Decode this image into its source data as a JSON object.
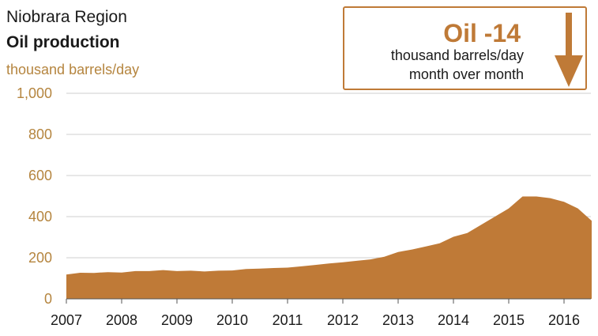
{
  "header": {
    "title": "Niobrara Region",
    "subtitle": "Oil production",
    "unit": "thousand barrels/day"
  },
  "callout": {
    "headline": "Oil -14",
    "line1": "thousand barrels/day",
    "line2": "month over month",
    "direction": "down",
    "color": "#bf7a37"
  },
  "chart_data": {
    "type": "area",
    "title": "Oil production",
    "ylabel": "thousand barrels/day",
    "ylim": [
      0,
      1000
    ],
    "y_ticks": [
      0,
      200,
      400,
      600,
      800,
      1000
    ],
    "y_tick_labels": [
      "0",
      "200",
      "400",
      "600",
      "800",
      "1,000"
    ],
    "x_ticks": [
      2007,
      2008,
      2009,
      2010,
      2011,
      2012,
      2013,
      2014,
      2015,
      2016
    ],
    "xlim": [
      2007,
      2016.5
    ],
    "grid": true,
    "fill_color": "#bf7a37",
    "series": [
      {
        "x": [
          2007.0,
          2007.25,
          2007.5,
          2007.75,
          2008.0,
          2008.25,
          2008.5,
          2008.75,
          2009.0,
          2009.25,
          2009.5,
          2009.75,
          2010.0,
          2010.25,
          2010.5,
          2010.75,
          2011.0,
          2011.25,
          2011.5,
          2011.75,
          2012.0,
          2012.25,
          2012.5,
          2012.75,
          2013.0,
          2013.25,
          2013.5,
          2013.75,
          2014.0,
          2014.25,
          2014.5,
          2014.75,
          2015.0,
          2015.25,
          2015.5,
          2015.75,
          2016.0,
          2016.25,
          2016.5
        ],
        "values": [
          118,
          127,
          126,
          130,
          128,
          135,
          135,
          140,
          135,
          137,
          133,
          137,
          138,
          145,
          147,
          150,
          152,
          158,
          165,
          172,
          178,
          185,
          192,
          205,
          228,
          240,
          255,
          270,
          302,
          320,
          360,
          400,
          440,
          498,
          498,
          490,
          472,
          440,
          380
        ]
      }
    ]
  }
}
